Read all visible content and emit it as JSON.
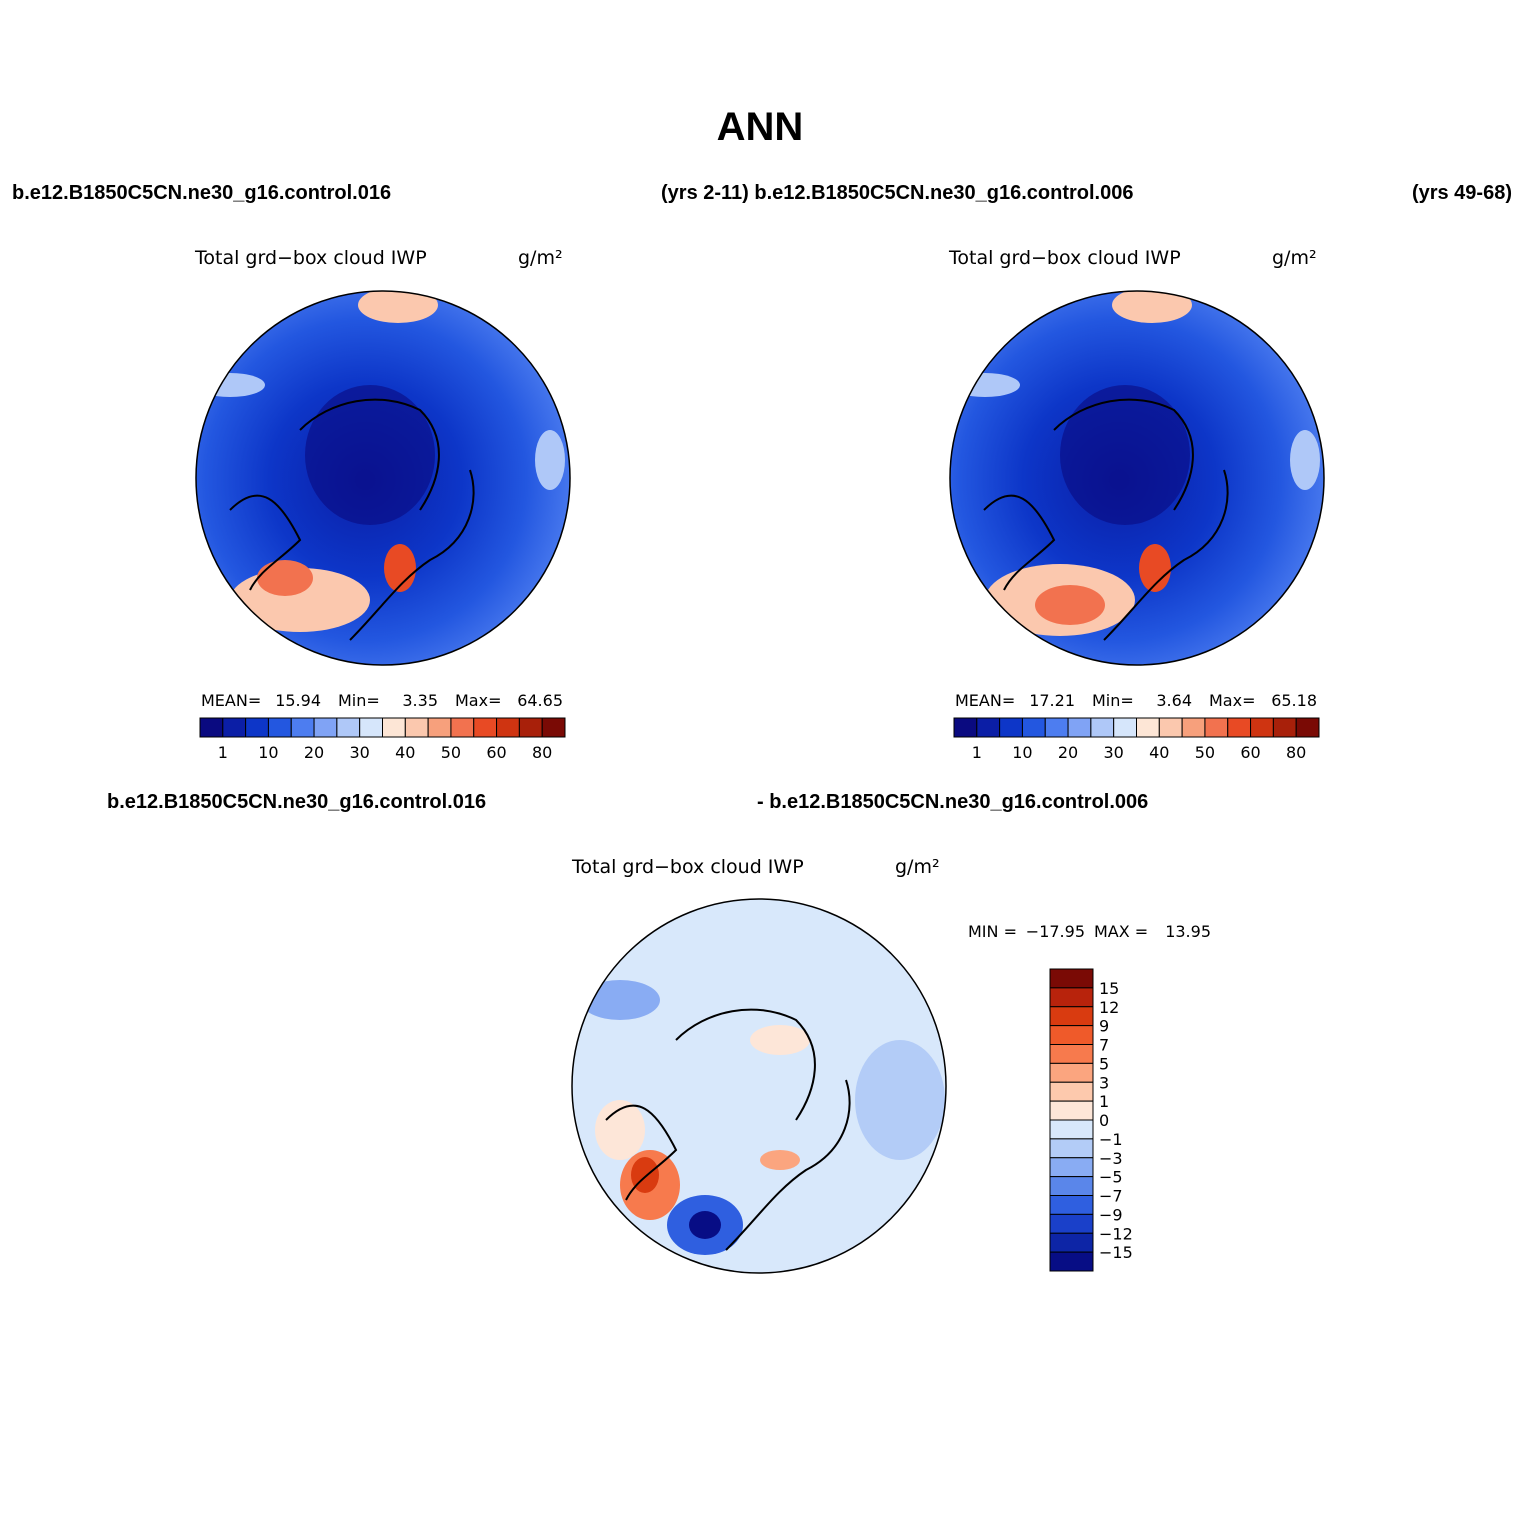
{
  "title": "ANN",
  "header": {
    "left": "b.e12.B1850C5CN.ne30_g16.control.016",
    "middle": "(yrs 2-11) b.e12.B1850C5CN.ne30_g16.control.006",
    "right": "(yrs 49-68)"
  },
  "panels": [
    {
      "title": "Total grd−box cloud IWP",
      "units": "g/m²",
      "stats": [
        {
          "label": "MEAN=",
          "value": "15.94"
        },
        {
          "label": "Min=",
          "value": "3.35"
        },
        {
          "label": "Max=",
          "value": "64.65"
        }
      ],
      "colorbar": {
        "labels": [
          "1",
          "10",
          "20",
          "30",
          "40",
          "50",
          "60",
          "80"
        ],
        "colors": [
          "#0a0a80",
          "#0b1ea6",
          "#0d36c8",
          "#2357e0",
          "#4d7df0",
          "#80a3f5",
          "#afc8f8",
          "#d6e6fb",
          "#fde6d6",
          "#fbc8ae",
          "#f7a07c",
          "#f2724f",
          "#e84a24",
          "#cf3411",
          "#a8200a",
          "#7a0a05"
        ]
      }
    },
    {
      "title": "Total grd−box cloud IWP",
      "units": "g/m²",
      "stats": [
        {
          "label": "MEAN=",
          "value": "17.21"
        },
        {
          "label": "Min=",
          "value": "3.64"
        },
        {
          "label": "Max=",
          "value": "65.18"
        }
      ],
      "colorbar": {
        "labels": [
          "1",
          "10",
          "20",
          "30",
          "40",
          "50",
          "60",
          "80"
        ],
        "colors": [
          "#0a0a80",
          "#0b1ea6",
          "#0d36c8",
          "#2357e0",
          "#4d7df0",
          "#80a3f5",
          "#afc8f8",
          "#d6e6fb",
          "#fde6d6",
          "#fbc8ae",
          "#f7a07c",
          "#f2724f",
          "#e84a24",
          "#cf3411",
          "#a8200a",
          "#7a0a05"
        ]
      }
    }
  ],
  "difference": {
    "left": "b.e12.B1850C5CN.ne30_g16.control.016",
    "right": "- b.e12.B1850C5CN.ne30_g16.control.006",
    "title": "Total grd−box cloud IWP",
    "units": "g/m²",
    "stats": [
      {
        "label": "MIN =",
        "value": "−17.95"
      },
      {
        "label": "MAX =",
        "value": "13.95"
      }
    ],
    "colorbar": {
      "labels": [
        "15",
        "12",
        "9",
        "7",
        "5",
        "3",
        "1",
        "0",
        "−1",
        "−3",
        "−5",
        "−7",
        "−9",
        "−12",
        "−15"
      ],
      "colors": [
        "#7a0a05",
        "#b8230c",
        "#d93b10",
        "#ef5a2a",
        "#f77a4d",
        "#fba57f",
        "#fdc9ad",
        "#fde6d8",
        "#d8e8fb",
        "#b3ccf7",
        "#89acf3",
        "#5a86ea",
        "#2f5fe0",
        "#1a40c9",
        "#0d25a6",
        "#070d85"
      ]
    }
  }
}
